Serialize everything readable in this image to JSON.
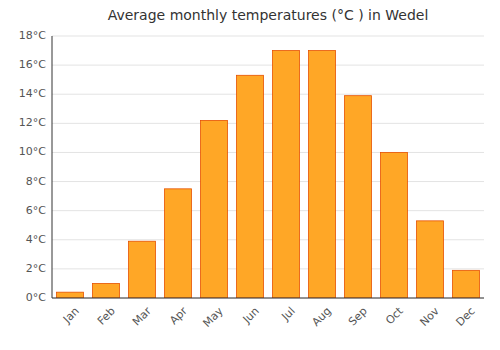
{
  "chart_data": {
    "type": "bar",
    "title": "Average monthly temperatures (°C ) in Wedel",
    "categories": [
      "Jan",
      "Feb",
      "Mar",
      "Apr",
      "May",
      "Jun",
      "Jul",
      "Aug",
      "Sep",
      "Oct",
      "Nov",
      "Dec"
    ],
    "values": [
      0.4,
      1.0,
      3.9,
      7.5,
      12.2,
      15.3,
      17.0,
      17.0,
      13.9,
      10.0,
      5.3,
      1.9
    ],
    "color": "#FFA726",
    "ylim": [
      0,
      18
    ],
    "yticks": [
      {
        "value": 0,
        "label": "0°C"
      },
      {
        "value": 2,
        "label": "2°C"
      },
      {
        "value": 4,
        "label": "4°C"
      },
      {
        "value": 6,
        "label": "6°C"
      },
      {
        "value": 8,
        "label": "8°C"
      },
      {
        "value": 10,
        "label": "10°C"
      },
      {
        "value": 12,
        "label": "12°C"
      },
      {
        "value": 14,
        "label": "14°C"
      },
      {
        "value": 16,
        "label": "16°C"
      },
      {
        "value": 18,
        "label": "18°C"
      }
    ],
    "grid": true
  }
}
